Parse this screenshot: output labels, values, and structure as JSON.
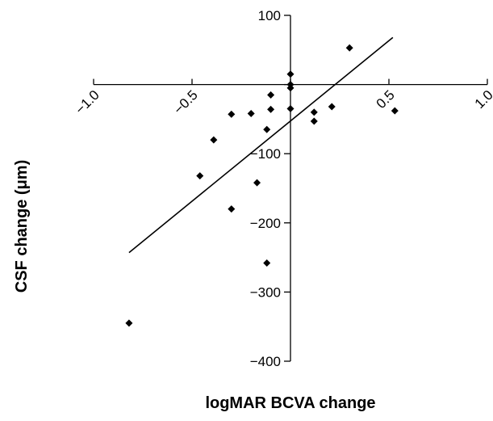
{
  "chart_data": {
    "type": "scatter",
    "xlabel": "logMAR BCVA change",
    "ylabel": "CSF change (μm)",
    "xlim": [
      -1.0,
      1.0
    ],
    "ylim": [
      -400,
      100
    ],
    "x_ticks": [
      -1.0,
      -0.5,
      0.0,
      0.5,
      1.0
    ],
    "x_tick_labels": [
      "−1.0",
      "−0.5",
      "",
      "0.5",
      "1.0"
    ],
    "y_ticks": [
      -400,
      -300,
      -200,
      -100,
      0,
      100
    ],
    "y_tick_labels": [
      "−400",
      "−300",
      "−200",
      "−100",
      "",
      "100"
    ],
    "grid": false,
    "legend": "none",
    "points": [
      {
        "x": -0.82,
        "y": -345
      },
      {
        "x": -0.46,
        "y": -132
      },
      {
        "x": -0.39,
        "y": -80
      },
      {
        "x": -0.3,
        "y": -43
      },
      {
        "x": -0.3,
        "y": -180
      },
      {
        "x": -0.2,
        "y": -42
      },
      {
        "x": -0.17,
        "y": -142
      },
      {
        "x": -0.12,
        "y": -65
      },
      {
        "x": -0.12,
        "y": -258
      },
      {
        "x": -0.1,
        "y": -36
      },
      {
        "x": -0.1,
        "y": -15
      },
      {
        "x": 0.0,
        "y": 15
      },
      {
        "x": 0.0,
        "y": 0
      },
      {
        "x": 0.0,
        "y": -5
      },
      {
        "x": 0.0,
        "y": -35
      },
      {
        "x": 0.12,
        "y": -40
      },
      {
        "x": 0.12,
        "y": -53
      },
      {
        "x": 0.21,
        "y": -32
      },
      {
        "x": 0.3,
        "y": 53
      },
      {
        "x": 0.53,
        "y": -38
      }
    ],
    "trend_line": {
      "x": [
        -0.82,
        0.52
      ],
      "y": [
        -243,
        68
      ]
    }
  }
}
